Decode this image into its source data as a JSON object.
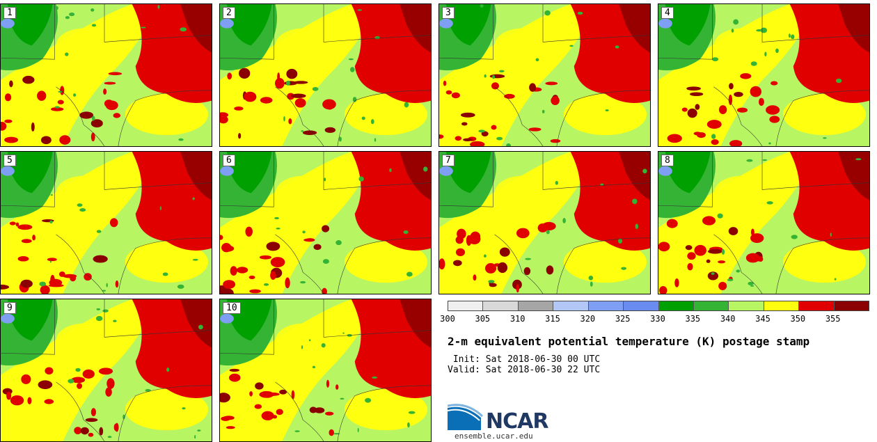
{
  "panels": [
    {
      "label": "1"
    },
    {
      "label": "2"
    },
    {
      "label": "3"
    },
    {
      "label": "4"
    },
    {
      "label": "5"
    },
    {
      "label": "6"
    },
    {
      "label": "7"
    },
    {
      "label": "8"
    },
    {
      "label": "9"
    },
    {
      "label": "10"
    }
  ],
  "colorbar": {
    "colors": [
      "#efefef",
      "#d9d9d9",
      "#a6a6a6",
      "#b3c7f7",
      "#7f9ff5",
      "#6a8bef",
      "#00a000",
      "#34b334",
      "#b7f563",
      "#ffff10",
      "#e00000",
      "#8b0000"
    ],
    "ticks": [
      "300",
      "305",
      "310",
      "315",
      "320",
      "325",
      "330",
      "335",
      "340",
      "345",
      "350",
      "355"
    ]
  },
  "title": "2-m equivalent potential temperature (K) postage stamp",
  "init_text": " Init: Sat 2018-06-30 00 UTC",
  "valid_text": "Valid: Sat 2018-06-30 22 UTC",
  "logo": {
    "text": "NCAR",
    "site": "ensemble.ucar.edu"
  }
}
